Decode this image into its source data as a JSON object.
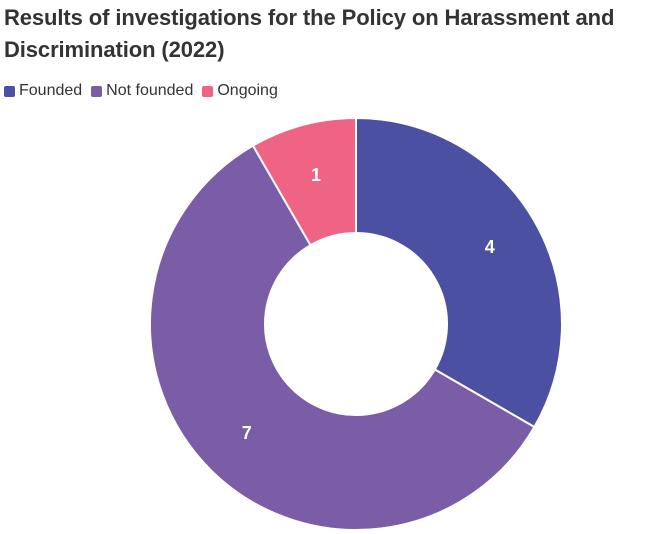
{
  "title": "Results of investigations for the Policy on Harassment and Discrimination (2022)",
  "chart_data": {
    "type": "pie",
    "title": "Results of investigations for the Policy on Harassment and Discrimination (2022)",
    "donut": true,
    "legend_position": "top-left",
    "categories": [
      "Founded",
      "Not founded",
      "Ongoing"
    ],
    "values": [
      4,
      7,
      1
    ],
    "colors": [
      "#4b50a2",
      "#7b5ca7",
      "#ef6385"
    ],
    "data_labels": [
      "4",
      "7",
      "1"
    ]
  }
}
